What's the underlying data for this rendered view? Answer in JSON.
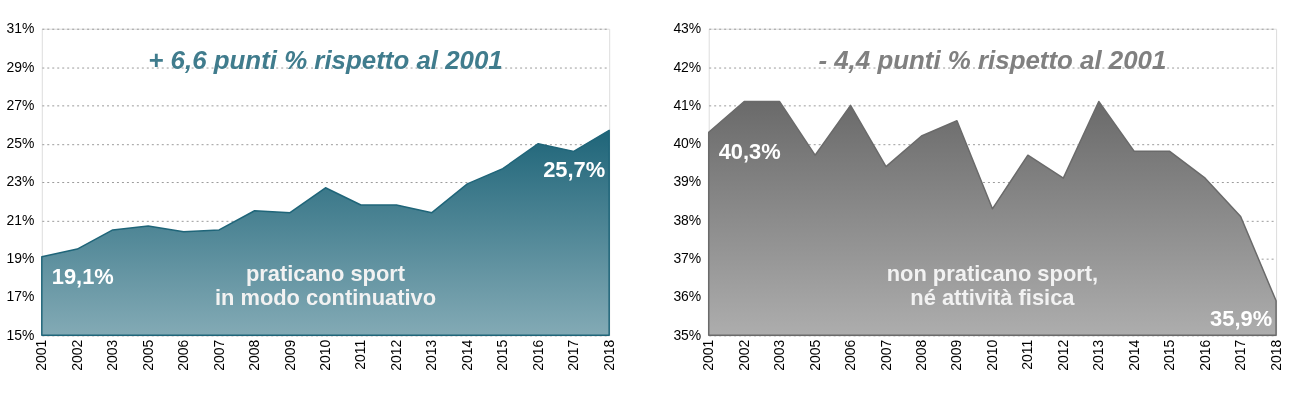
{
  "chart_data": [
    {
      "type": "area",
      "title": "+ 6,6 punti % rispetto al 2001",
      "categories": [
        "2001",
        "2002",
        "2003",
        "2005",
        "2006",
        "2007",
        "2008",
        "2009",
        "2010",
        "2011",
        "2012",
        "2013",
        "2014",
        "2015",
        "2016",
        "2017",
        "2018"
      ],
      "series": [
        {
          "color": "#1f6579",
          "values": [
            19.1,
            19.5,
            20.5,
            20.7,
            20.4,
            20.5,
            21.5,
            21.4,
            22.7,
            21.8,
            21.8,
            21.4,
            22.9,
            23.7,
            25.0,
            24.6,
            25.7
          ],
          "value_labels": [
            "19,1%",
            null,
            null,
            null,
            null,
            null,
            null,
            null,
            null,
            null,
            null,
            null,
            null,
            null,
            null,
            null,
            "25,7%"
          ]
        }
      ],
      "ylim": [
        15,
        31
      ],
      "yticks": [
        {
          "value": 15,
          "label": "15%"
        },
        {
          "value": 17,
          "label": "17%"
        },
        {
          "value": 19,
          "label": "19%"
        },
        {
          "value": 21,
          "label": "21%"
        },
        {
          "value": 23,
          "label": "23%"
        },
        {
          "value": 25,
          "label": "25%"
        },
        {
          "value": 27,
          "label": "27%"
        },
        {
          "value": 29,
          "label": "29%"
        },
        {
          "value": 31,
          "label": "31%"
        }
      ],
      "annotations": [
        "praticano sport\nin modo continuativo"
      ],
      "grid": "y"
    },
    {
      "type": "area",
      "title": "- 4,4 punti % rispetto al 2001",
      "categories": [
        "2001",
        "2002",
        "2003",
        "2005",
        "2006",
        "2007",
        "2008",
        "2009",
        "2010",
        "2011",
        "2012",
        "2013",
        "2014",
        "2015",
        "2016",
        "2017",
        "2018"
      ],
      "series": [
        {
          "color": "#6a6a6a",
          "values": [
            40.3,
            41.1,
            41.1,
            39.7,
            41.0,
            39.4,
            40.2,
            40.6,
            38.3,
            39.7,
            39.1,
            41.1,
            39.8,
            39.8,
            39.1,
            38.1,
            35.9
          ],
          "value_labels": [
            "40,3%",
            null,
            null,
            null,
            null,
            null,
            null,
            null,
            null,
            null,
            null,
            null,
            null,
            null,
            null,
            null,
            "35,9%"
          ]
        }
      ],
      "ylim": [
        35,
        43
      ],
      "yticks": [
        {
          "value": 35,
          "label": "35%"
        },
        {
          "value": 36,
          "label": "36%"
        },
        {
          "value": 37,
          "label": "37%"
        },
        {
          "value": 38,
          "label": "38%"
        },
        {
          "value": 39,
          "label": "39%"
        },
        {
          "value": 40,
          "label": "40%"
        },
        {
          "value": 41,
          "label": "41%"
        },
        {
          "value": 42,
          "label": "42%"
        },
        {
          "value": 43,
          "label": "43%"
        }
      ],
      "annotations": [
        "non praticano sport,\nné attività fisica"
      ],
      "grid": "y"
    }
  ]
}
